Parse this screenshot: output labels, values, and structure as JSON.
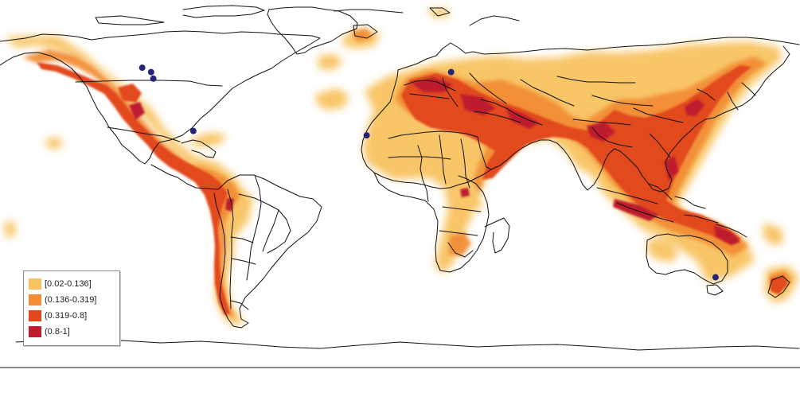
{
  "legend": {
    "items": [
      {
        "label": "[0.02-0.136]",
        "color": "#f8c25f"
      },
      {
        "label": "(0.136-0.319]",
        "color": "#f28d36"
      },
      {
        "label": "(0.319-0.8]",
        "color": "#e2481b"
      },
      {
        "label": "(0.8-1]",
        "color": "#be1d2d"
      }
    ]
  },
  "map": {
    "projection": "plate-carree",
    "background": "#ffffff",
    "boundary_color": "#111111",
    "marker_color": "#26237a",
    "markers": [
      {
        "lon": -112,
        "lat": 57
      },
      {
        "lon": -116,
        "lat": 59
      },
      {
        "lon": -111,
        "lat": 54
      },
      {
        "lon": -93,
        "lat": 30
      },
      {
        "lon": -15,
        "lat": 28
      },
      {
        "lon": 23,
        "lat": 57
      },
      {
        "lon": 142,
        "lat": -37
      }
    ]
  }
}
